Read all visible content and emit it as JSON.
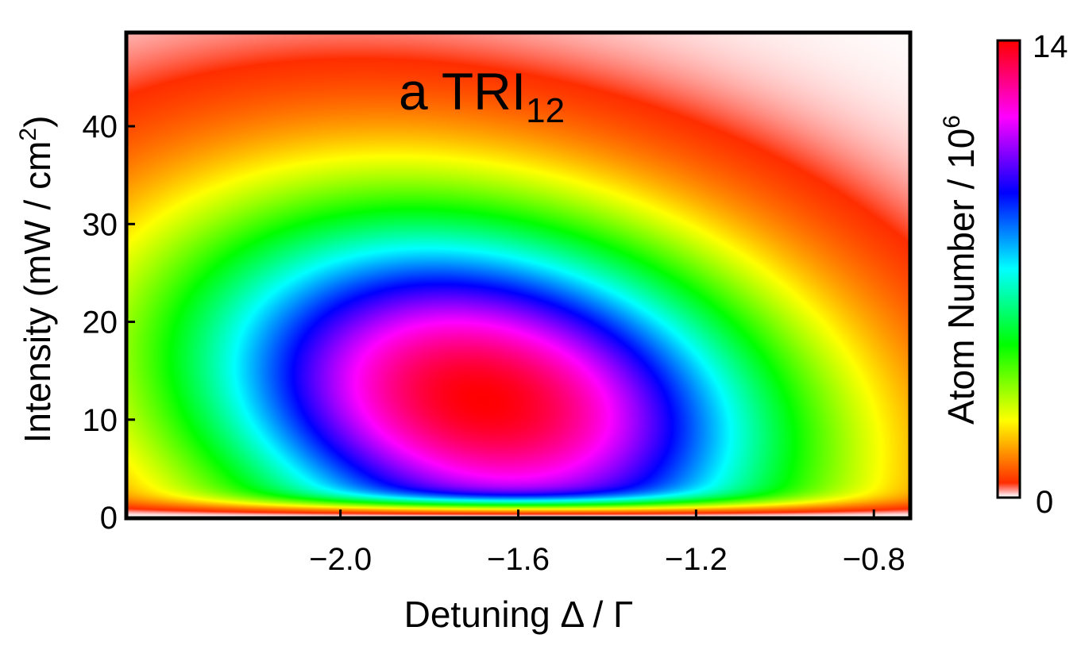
{
  "chart_data": {
    "type": "heatmap",
    "title_main": "a TRI",
    "title_sub": "12",
    "xlabel": "Detuning Δ / Γ",
    "ylabel_main": "Intensity (mW / cm",
    "ylabel_sup": "2",
    "ylabel_close": ")",
    "colorbar_label_main": "Atom Number / 10",
    "colorbar_label_sup": "6",
    "xlim": [
      -2.48,
      -0.72
    ],
    "ylim": [
      0,
      49.5
    ],
    "x_ticks": [
      {
        "value": -2.0,
        "label": "−2.0"
      },
      {
        "value": -1.6,
        "label": "−1.6"
      },
      {
        "value": -1.2,
        "label": "−1.2"
      },
      {
        "value": -0.8,
        "label": "−0.8"
      }
    ],
    "y_ticks": [
      {
        "value": 0,
        "label": "0"
      },
      {
        "value": 10,
        "label": "10"
      },
      {
        "value": 20,
        "label": "20"
      },
      {
        "value": 30,
        "label": "30"
      },
      {
        "value": 40,
        "label": "40"
      }
    ],
    "colorbar": {
      "min": 0,
      "max": 14,
      "min_label": "0",
      "max_label": "14",
      "colormap": "hue: red → yellow → green → cyan → blue → magenta → red (white near 0)"
    },
    "peak": {
      "x": -1.68,
      "y": 12,
      "value": 14
    },
    "grid": false
  }
}
